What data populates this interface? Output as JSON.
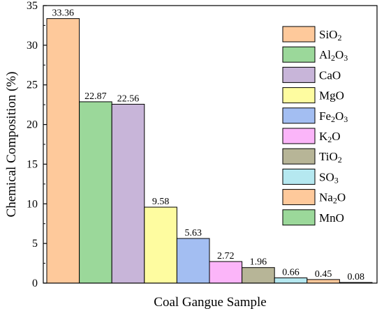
{
  "chart_data": {
    "type": "bar",
    "title": "",
    "xlabel": "Coal Gangue Sample",
    "ylabel": "Chemical Composition (%)",
    "ylim": [
      0,
      35
    ],
    "yticks": [
      "0",
      "5",
      "10",
      "15",
      "20",
      "25",
      "30",
      "35"
    ],
    "grid": false,
    "legend": "top-right",
    "series": [
      {
        "name": "SiO2",
        "label": [
          "SiO",
          "2",
          ""
        ],
        "value": 33.36,
        "display": "33.36",
        "color": "#fec99b"
      },
      {
        "name": "Al2O3",
        "label": [
          "Al",
          "2",
          "O",
          "3"
        ],
        "value": 22.87,
        "display": "22.87",
        "color": "#9bd89a"
      },
      {
        "name": "CaO",
        "label": [
          "CaO"
        ],
        "value": 22.56,
        "display": "22.56",
        "color": "#c8b5d9"
      },
      {
        "name": "MgO",
        "label": [
          "MgO"
        ],
        "value": 9.58,
        "display": "9.58",
        "color": "#fefca0"
      },
      {
        "name": "Fe2O3",
        "label": [
          "Fe",
          "2",
          "O",
          "3"
        ],
        "value": 5.63,
        "display": "5.63",
        "color": "#a3bef2"
      },
      {
        "name": "K2O",
        "label": [
          "K",
          "2",
          "O"
        ],
        "value": 2.72,
        "display": "2.72",
        "color": "#fbb5f9"
      },
      {
        "name": "TiO2",
        "label": [
          "TiO",
          "2",
          ""
        ],
        "value": 1.96,
        "display": "1.96",
        "color": "#b7b597"
      },
      {
        "name": "SO3",
        "label": [
          "SO",
          "3",
          ""
        ],
        "value": 0.66,
        "display": "0.66",
        "color": "#b5e8f0"
      },
      {
        "name": "Na2O",
        "label": [
          "Na",
          "2",
          "O"
        ],
        "value": 0.45,
        "display": "0.45",
        "color": "#fec99b"
      },
      {
        "name": "MnO",
        "label": [
          "MnO"
        ],
        "value": 0.08,
        "display": "0.08",
        "color": "#9bd89a"
      }
    ]
  }
}
